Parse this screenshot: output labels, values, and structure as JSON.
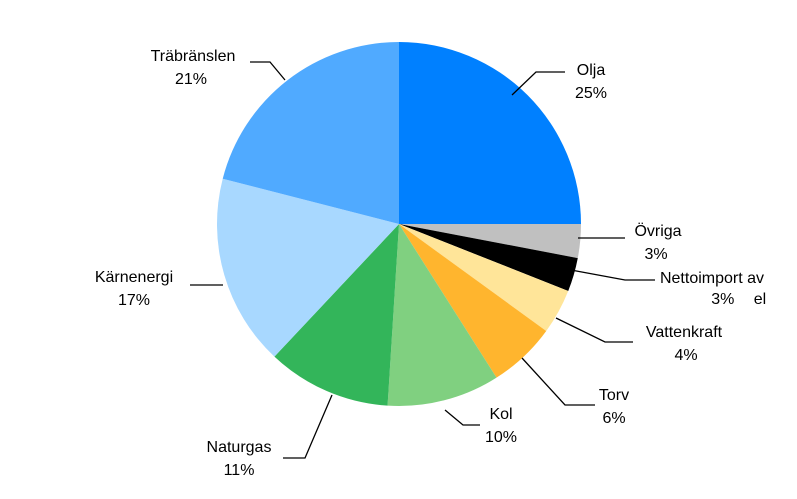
{
  "chart_data": {
    "type": "pie",
    "slices": [
      {
        "label": "Olja",
        "value": 25,
        "pct_label": "25%",
        "color": "#0080ff"
      },
      {
        "label": "Övriga",
        "value": 3,
        "pct_label": "3%",
        "color": "#c0c0c0"
      },
      {
        "label": "Nettoimport av el",
        "label_lines": [
          "Nettoimport av",
          "el"
        ],
        "value": 3,
        "pct_label": "3%",
        "color": "#000000"
      },
      {
        "label": "Vattenkraft",
        "value": 4,
        "pct_label": "4%",
        "color": "#ffe599"
      },
      {
        "label": "Torv",
        "value": 6,
        "pct_label": "6%",
        "color": "#ffb52e"
      },
      {
        "label": "Kol",
        "value": 10,
        "pct_label": "10%",
        "color": "#80d080"
      },
      {
        "label": "Naturgas",
        "value": 11,
        "pct_label": "11%",
        "color": "#33b55a"
      },
      {
        "label": "Kärnenergi",
        "value": 17,
        "pct_label": "17%",
        "color": "#a8d8ff"
      },
      {
        "label": "Träbränslen",
        "value": 21,
        "pct_label": "21%",
        "color": "#50aaff"
      }
    ],
    "start_angle_deg": 90,
    "direction": "clockwise"
  }
}
